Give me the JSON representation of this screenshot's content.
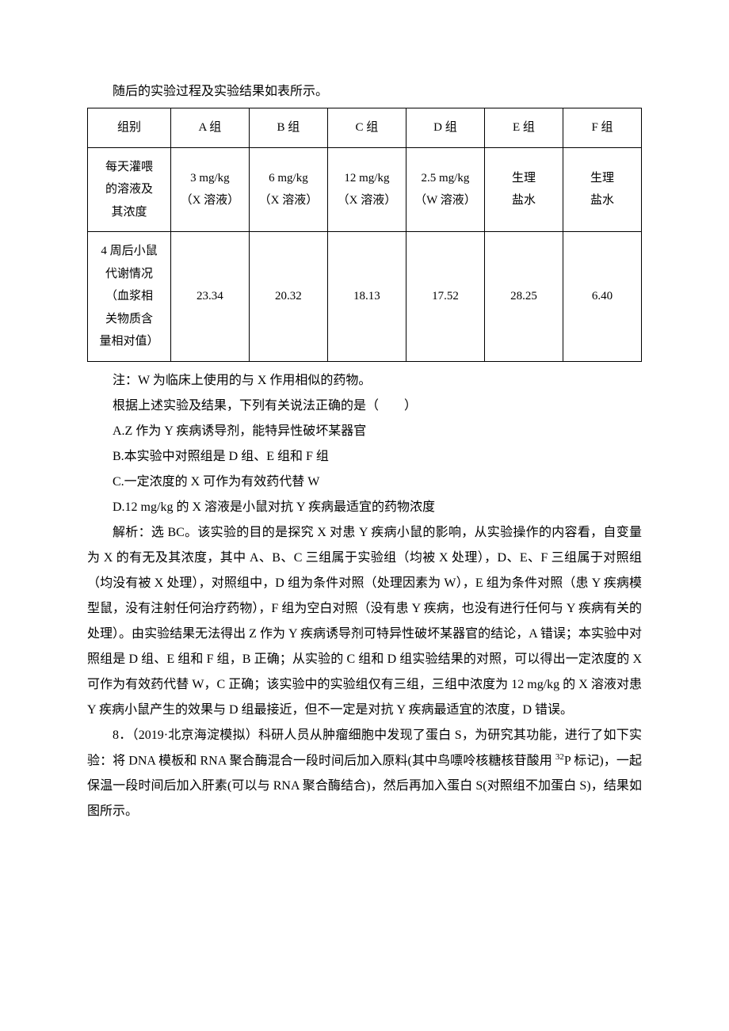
{
  "intro_line": "随后的实验过程及实验结果如表所示。",
  "table": {
    "row1_label": "组别",
    "row2_label_l1": "每天灌喂",
    "row2_label_l2": "的溶液及",
    "row2_label_l3": "其浓度",
    "row3_label_l1": "4 周后小鼠",
    "row3_label_l2": "代谢情况",
    "row3_label_l3": "（血浆相",
    "row3_label_l4": "关物质含",
    "row3_label_l5": "量相对值）",
    "groups": {
      "A": {
        "name": "A 组",
        "dose_l1": "3 mg/kg",
        "dose_l2": "（X 溶液）",
        "value": "23.34"
      },
      "B": {
        "name": "B 组",
        "dose_l1": "6 mg/kg",
        "dose_l2": "（X 溶液）",
        "value": "20.32"
      },
      "C": {
        "name": "C 组",
        "dose_l1": "12 mg/kg",
        "dose_l2": "（X 溶液）",
        "value": "18.13"
      },
      "D": {
        "name": "D 组",
        "dose_l1": "2.5 mg/kg",
        "dose_l2": "（W 溶液）",
        "value": "17.52"
      },
      "E": {
        "name": "E 组",
        "dose_l1": "生理",
        "dose_l2": "盐水",
        "value": "28.25"
      },
      "F": {
        "name": "F 组",
        "dose_l1": "生理",
        "dose_l2": "盐水",
        "value": "6.40"
      }
    }
  },
  "note": "注：W 为临床上使用的与 X 作用相似的药物。",
  "question_stem": "根据上述实验及结果，下列有关说法正确的是（　　）",
  "options": {
    "A": "A.Z 作为 Y 疾病诱导剂，能特异性破坏某器官",
    "B": "B.本实验中对照组是 D 组、E 组和 F 组",
    "C": "C.一定浓度的 X 可作为有效药代替 W",
    "D": "D.12 mg/kg 的 X 溶液是小鼠对抗 Y 疾病最适宜的药物浓度"
  },
  "explanation": "解析：选 BC。该实验的目的是探究 X 对患 Y 疾病小鼠的影响，从实验操作的内容看，自变量为 X 的有无及其浓度，其中 A、B、C 三组属于实验组（均被 X 处理），D、E、F 三组属于对照组（均没有被 X 处理），对照组中，D 组为条件对照（处理因素为 W），E 组为条件对照（患 Y 疾病模型鼠，没有注射任何治疗药物），F 组为空白对照（没有患 Y 疾病，也没有进行任何与 Y 疾病有关的处理）。由实验结果无法得出 Z 作为 Y 疾病诱导剂可特异性破坏某器官的结论，A 错误；本实验中对照组是 D 组、E 组和 F 组，B 正确；从实验的 C 组和 D 组实验结果的对照，可以得出一定浓度的 X 可作为有效药代替 W，C 正确；该实验中的实验组仅有三组，三组中浓度为 12 mg/kg 的 X 溶液对患 Y 疾病小鼠产生的效果与 D 组最接近，但不一定是对抗 Y 疾病最适宜的浓度，D 错误。",
  "q8_part1": "8．（2019·北京海淀模拟）科研人员从肿瘤细胞中发现了蛋白 S，为研究其功能，进行了如下实验：将 DNA 模板和 RNA 聚合酶混合一段时间后加入原料(其中鸟嘌呤核糖核苷酸用 ",
  "q8_isotope": "32",
  "q8_part2": "P 标记)，一起保温一段时间后加入肝素(可以与 RNA 聚合酶结合)，然后再加入蛋白 S(对照组不加蛋白 S)，结果如图所示。"
}
